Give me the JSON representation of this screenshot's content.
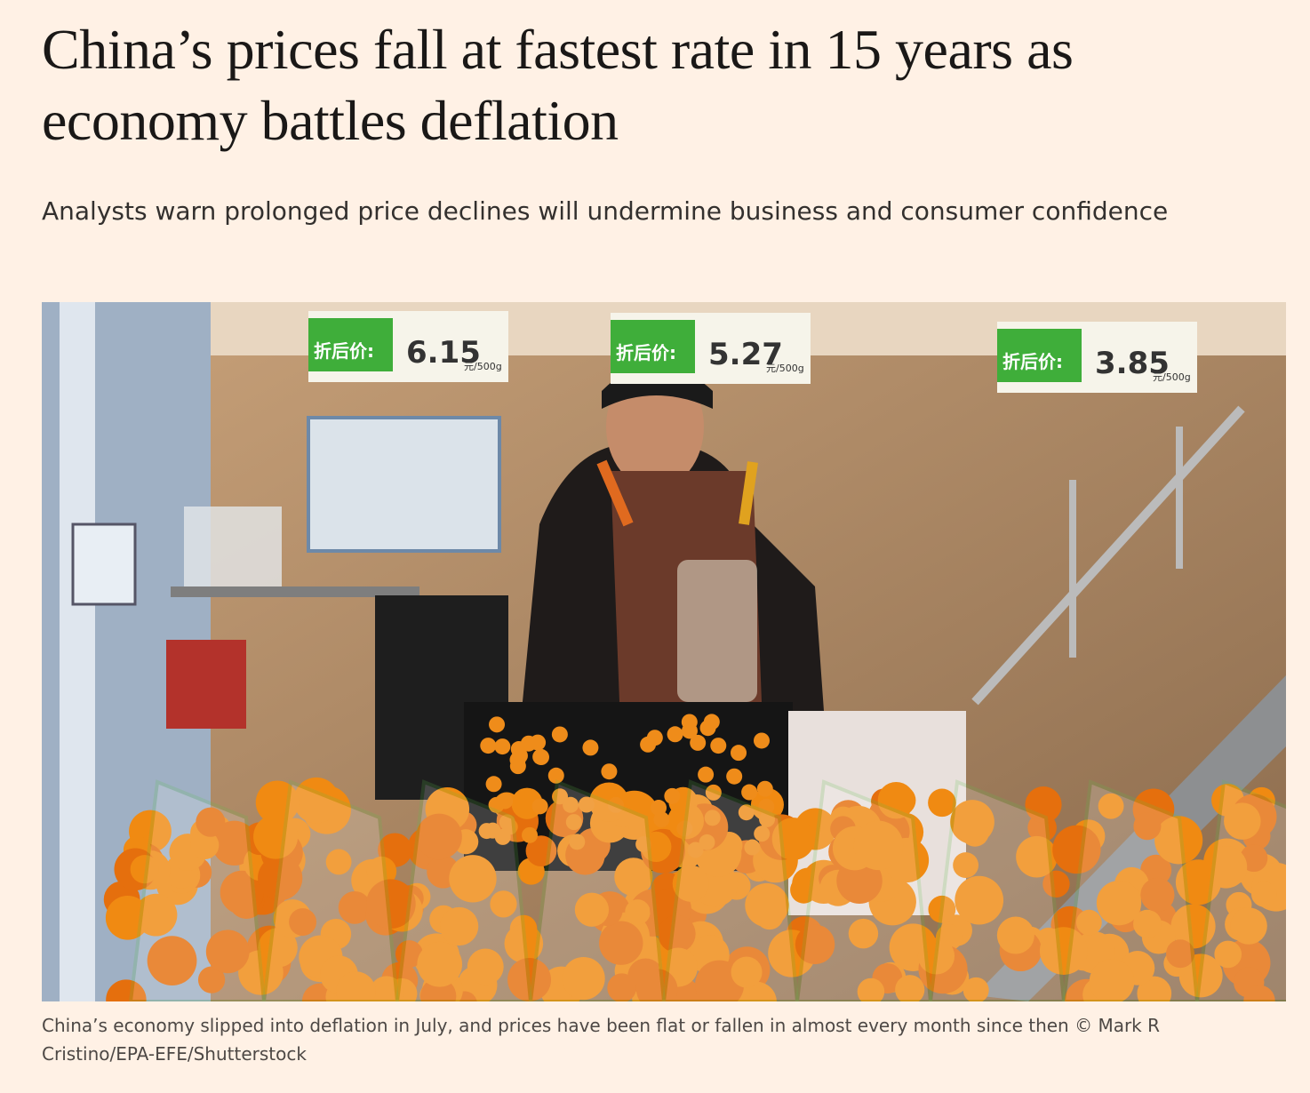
{
  "header": {
    "title": "China’s prices fall at fastest rate in 15 years as economy battles deflation",
    "standfirst": "Analysts warn prolonged price declines will undermine business and consumer confidence"
  },
  "photo": {
    "price_tags": [
      {
        "label": "折后价:",
        "price": "6.15",
        "unit": "元/500g"
      },
      {
        "label": "折后价:",
        "price": "5.27",
        "unit": "元/500g"
      },
      {
        "label": "折后价:",
        "price": "3.85",
        "unit": "元/500g"
      }
    ]
  },
  "caption": "China’s economy slipped into deflation in July, and prices have been flat or fallen in almost every month since then © Mark R Cristino/EPA-EFE/Shutterstock"
}
